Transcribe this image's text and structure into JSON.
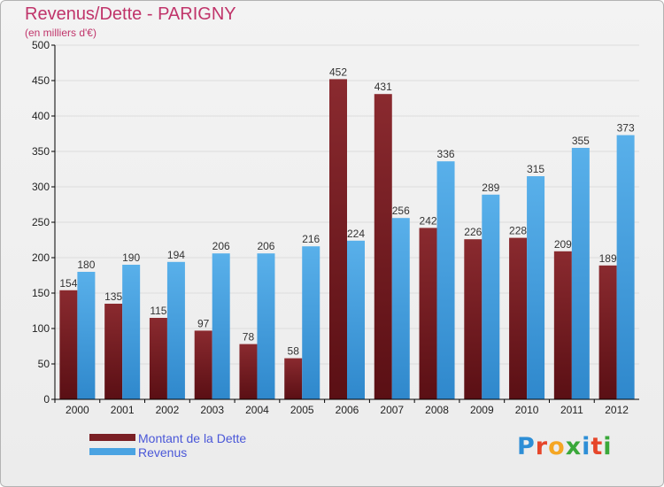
{
  "header": {
    "title": "Revenus/Dette - PARIGNY",
    "subtitle": "(en milliers d'€)"
  },
  "legend": [
    {
      "label": "Montant de la Dette",
      "color": "#7a1f24"
    },
    {
      "label": "Revenus",
      "color": "#4aa3e2"
    }
  ],
  "logo": {
    "text": "Proxiti",
    "letter_colors": [
      "#2d8ed6",
      "#e6462a",
      "#f5a623",
      "#3aa83a",
      "#2d8ed6",
      "#e6462a",
      "#3aa83a"
    ]
  },
  "colors": {
    "axis": "#000000",
    "grid": "#dcdcdc",
    "tick_text": "#222222",
    "value_text": "#333333"
  },
  "chart_data": {
    "type": "bar",
    "categories": [
      "2000",
      "2001",
      "2002",
      "2003",
      "2004",
      "2005",
      "2006",
      "2007",
      "2008",
      "2009",
      "2010",
      "2011",
      "2012"
    ],
    "series": [
      {
        "name": "Montant de la Dette",
        "color": "#7a1f24",
        "values": [
          154,
          135,
          115,
          97,
          78,
          58,
          452,
          431,
          242,
          226,
          228,
          209,
          189
        ]
      },
      {
        "name": "Revenus",
        "color": "#4aa3e2",
        "values": [
          180,
          190,
          194,
          206,
          206,
          216,
          224,
          256,
          336,
          289,
          315,
          355,
          373
        ]
      }
    ],
    "ylim": [
      0,
      500
    ],
    "yticks": [
      0,
      50,
      100,
      150,
      200,
      250,
      300,
      350,
      400,
      450,
      500
    ],
    "grid": true,
    "legend_position": "bottom-left",
    "title": "Revenus/Dette - PARIGNY",
    "ylabel": "",
    "xlabel": ""
  }
}
